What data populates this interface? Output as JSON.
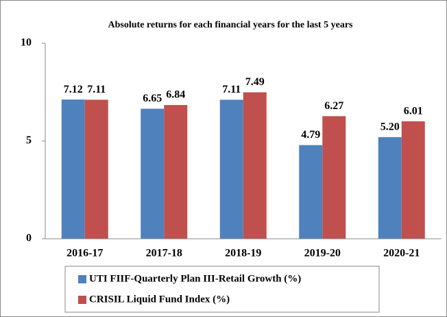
{
  "chart_data": {
    "type": "bar",
    "title": "Absolute returns for each financial years for the last 5 years",
    "categories": [
      "2016-17",
      "2017-18",
      "2018-19",
      "2019-20",
      "2020-21"
    ],
    "series": [
      {
        "name": "UTI FIIF-Quarterly Plan III-Retail Growth (%)",
        "color": "#4f81bd",
        "values": [
          7.12,
          6.65,
          7.11,
          4.79,
          5.2
        ],
        "value_labels": [
          "7.12",
          "6.65",
          "7.11",
          "4.79",
          "5.20"
        ]
      },
      {
        "name": "CRISIL Liquid Fund Index (%)",
        "color": "#c0504d",
        "values": [
          7.11,
          6.84,
          7.49,
          6.27,
          6.01
        ],
        "value_labels": [
          "7.11",
          "6.84",
          "7.49",
          "6.27",
          "6.01"
        ]
      }
    ],
    "ylim": [
      0,
      10
    ],
    "yticks": [
      0,
      5,
      10
    ],
    "grid": false,
    "legend": "bottom"
  }
}
